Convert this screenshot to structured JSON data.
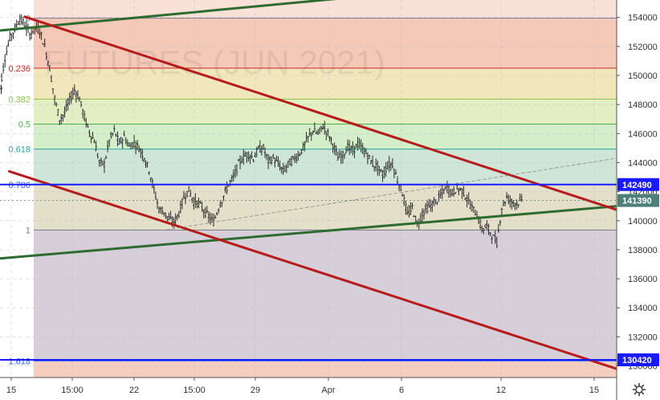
{
  "chart_data": {
    "type": "candlestick",
    "instrument_watermark": "FUTURES (JUN 2021)",
    "price_axis": {
      "min": 129200,
      "max": 155200,
      "ticks": [
        154000,
        152000,
        150000,
        148000,
        146000,
        144000,
        142000,
        140000,
        138000,
        136000,
        134000,
        132000,
        130000
      ]
    },
    "time_axis": {
      "labels": [
        "15",
        "15:00",
        "22",
        "15:00",
        "29",
        "Apr",
        "6",
        "12",
        "15"
      ]
    },
    "fibonacci": {
      "high": 153950,
      "low": 139360,
      "levels": [
        {
          "label": "0",
          "ratio": 0,
          "color": "#787b86"
        },
        {
          "label": "0.236",
          "ratio": 0.236,
          "color": "#c62828"
        },
        {
          "label": "0.382",
          "ratio": 0.382,
          "color": "#8bc34a"
        },
        {
          "label": "0.5",
          "ratio": 0.5,
          "color": "#4caf50"
        },
        {
          "label": "0.618",
          "ratio": 0.618,
          "color": "#26a69a"
        },
        {
          "label": "0.786",
          "ratio": 0.786,
          "color": "#2962ff"
        },
        {
          "label": "1",
          "ratio": 1,
          "color": "#787b86"
        },
        {
          "label": "1.618",
          "ratio": 1.618,
          "color": "#2962ff"
        }
      ]
    },
    "marked_prices": [
      {
        "label": "142490",
        "value": 142490,
        "color": "#1a1aff"
      },
      {
        "label": "141390",
        "value": 141390,
        "color": "#4e7f78"
      },
      {
        "label": "130420",
        "value": 130420,
        "color": "#1a1aff"
      }
    ],
    "trend_lines": [
      {
        "name": "upper-green-trendline",
        "color": "#2e6b30",
        "from": {
          "t": 0,
          "price": 153100
        },
        "to": {
          "t": 1,
          "price": 157100
        }
      },
      {
        "name": "lower-green-trendline",
        "color": "#2e6b30",
        "from": {
          "t": 0,
          "price": 137400
        },
        "to": {
          "t": 1,
          "price": 141000
        }
      },
      {
        "name": "upper-red-channel-line",
        "color": "#b71c1c",
        "from": {
          "t": 0.04,
          "price": 154050
        },
        "to": {
          "t": 1,
          "price": 140750
        }
      },
      {
        "name": "lower-red-channel-line",
        "color": "#b71c1c",
        "from": {
          "t": 0.015,
          "price": 143400
        },
        "to": {
          "t": 1,
          "price": 129800
        }
      },
      {
        "name": "dashed-midline",
        "color": "#888888",
        "from": {
          "t": 0.27,
          "price": 139380
        },
        "to": {
          "t": 1,
          "price": 144300
        }
      }
    ],
    "price_series": [
      149200,
      151200,
      152600,
      153200,
      153950,
      153500,
      152800,
      153300,
      153100,
      152000,
      150500,
      148400,
      147000,
      147400,
      148300,
      149000,
      148400,
      147100,
      146100,
      145500,
      144000,
      143900,
      145500,
      146200,
      145300,
      145800,
      145100,
      145400,
      145000,
      144400,
      143500,
      142100,
      140800,
      140600,
      140100,
      139900,
      140500,
      141600,
      142100,
      141300,
      141200,
      140700,
      140300,
      139900,
      140900,
      141700,
      142500,
      143000,
      143900,
      144400,
      144600,
      144300,
      144900,
      145000,
      144100,
      144300,
      143900,
      143400,
      143900,
      144200,
      144500,
      145000,
      145700,
      146200,
      146000,
      146500,
      146000,
      145300,
      144300,
      144500,
      145100,
      144800,
      145300,
      144900,
      144500,
      143900,
      143700,
      143100,
      143800,
      143900,
      142800,
      141900,
      140400,
      140900,
      139700,
      140500,
      140900,
      141100,
      141400,
      141900,
      142300,
      141900,
      142200,
      142100,
      141500,
      140900,
      140400,
      139400,
      139600,
      139000,
      138500,
      140900,
      141600,
      141300,
      141200,
      141390
    ],
    "price_series_t_range": [
      0,
      0.846
    ]
  }
}
